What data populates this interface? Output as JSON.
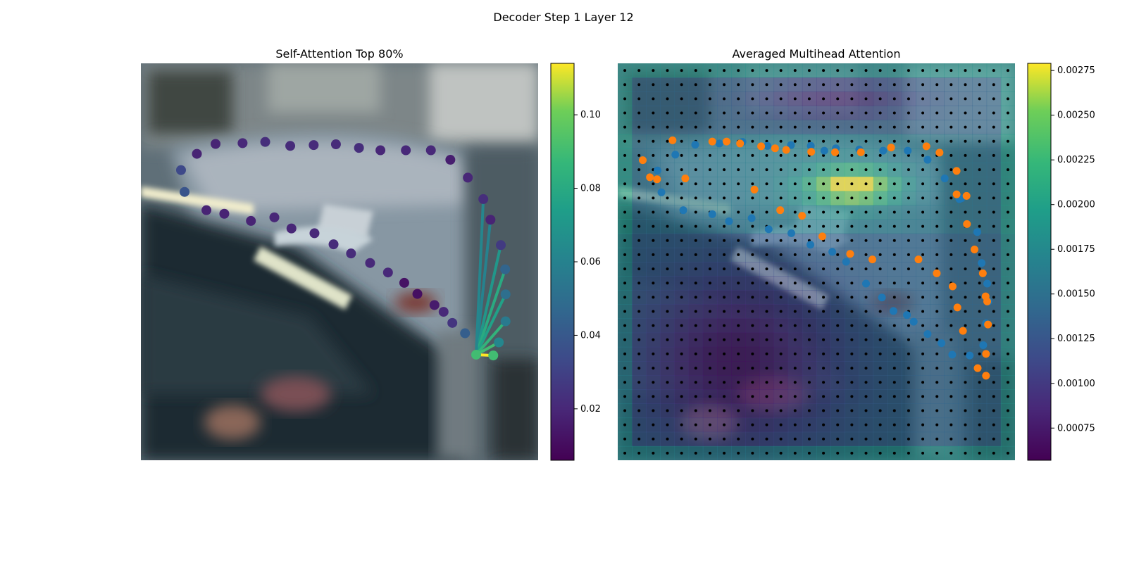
{
  "figure": {
    "suptitle": "Decoder Step 1 Layer 12"
  },
  "chart_data": [
    {
      "type": "scatter",
      "title": "Self-Attention Top 80%",
      "background": "blurred photo of parked cars (street scene)",
      "colormap": "viridis",
      "colorbar": {
        "min": 0.006,
        "max": 0.114,
        "ticks": [
          "0.02",
          "0.04",
          "0.06",
          "0.08",
          "0.10"
        ],
        "tick_values": [
          0.02,
          0.04,
          0.06,
          0.08,
          0.1
        ]
      },
      "axes_visible": false,
      "x_range": [
        0,
        1
      ],
      "y_range": [
        0,
        1
      ],
      "query_point": {
        "x": 0.844,
        "y": 0.734,
        "value": 0.09
      },
      "points": [
        {
          "x": 0.101,
          "y": 0.269,
          "value": 0.033
        },
        {
          "x": 0.11,
          "y": 0.324,
          "value": 0.038
        },
        {
          "x": 0.141,
          "y": 0.228,
          "value": 0.018
        },
        {
          "x": 0.165,
          "y": 0.37,
          "value": 0.018
        },
        {
          "x": 0.188,
          "y": 0.203,
          "value": 0.018
        },
        {
          "x": 0.21,
          "y": 0.379,
          "value": 0.018
        },
        {
          "x": 0.256,
          "y": 0.201,
          "value": 0.02
        },
        {
          "x": 0.277,
          "y": 0.397,
          "value": 0.018
        },
        {
          "x": 0.313,
          "y": 0.198,
          "value": 0.022
        },
        {
          "x": 0.336,
          "y": 0.388,
          "value": 0.019
        },
        {
          "x": 0.376,
          "y": 0.208,
          "value": 0.021
        },
        {
          "x": 0.379,
          "y": 0.416,
          "value": 0.019
        },
        {
          "x": 0.435,
          "y": 0.206,
          "value": 0.021
        },
        {
          "x": 0.437,
          "y": 0.428,
          "value": 0.02
        },
        {
          "x": 0.491,
          "y": 0.204,
          "value": 0.021
        },
        {
          "x": 0.485,
          "y": 0.456,
          "value": 0.021
        },
        {
          "x": 0.549,
          "y": 0.213,
          "value": 0.022
        },
        {
          "x": 0.529,
          "y": 0.479,
          "value": 0.021
        },
        {
          "x": 0.603,
          "y": 0.219,
          "value": 0.019
        },
        {
          "x": 0.577,
          "y": 0.503,
          "value": 0.02
        },
        {
          "x": 0.667,
          "y": 0.219,
          "value": 0.02
        },
        {
          "x": 0.622,
          "y": 0.527,
          "value": 0.02
        },
        {
          "x": 0.73,
          "y": 0.219,
          "value": 0.02
        },
        {
          "x": 0.663,
          "y": 0.553,
          "value": 0.012
        },
        {
          "x": 0.779,
          "y": 0.243,
          "value": 0.016
        },
        {
          "x": 0.696,
          "y": 0.581,
          "value": 0.011
        },
        {
          "x": 0.823,
          "y": 0.288,
          "value": 0.019
        },
        {
          "x": 0.739,
          "y": 0.609,
          "value": 0.015
        },
        {
          "x": 0.862,
          "y": 0.342,
          "value": 0.022
        },
        {
          "x": 0.762,
          "y": 0.626,
          "value": 0.02
        },
        {
          "x": 0.88,
          "y": 0.394,
          "value": 0.018
        },
        {
          "x": 0.784,
          "y": 0.654,
          "value": 0.025
        },
        {
          "x": 0.906,
          "y": 0.458,
          "value": 0.027
        },
        {
          "x": 0.816,
          "y": 0.68,
          "value": 0.042
        },
        {
          "x": 0.917,
          "y": 0.519,
          "value": 0.045
        },
        {
          "x": 0.918,
          "y": 0.582,
          "value": 0.05
        },
        {
          "x": 0.918,
          "y": 0.65,
          "value": 0.056
        },
        {
          "x": 0.901,
          "y": 0.703,
          "value": 0.062
        },
        {
          "x": 0.887,
          "y": 0.736,
          "value": 0.09
        },
        {
          "x": 0.844,
          "y": 0.734,
          "value": 0.09
        }
      ],
      "links": [
        {
          "x": 0.88,
          "y": 0.394,
          "value": 0.06
        },
        {
          "x": 0.906,
          "y": 0.458,
          "value": 0.07
        },
        {
          "x": 0.917,
          "y": 0.519,
          "value": 0.08
        },
        {
          "x": 0.918,
          "y": 0.582,
          "value": 0.075
        },
        {
          "x": 0.918,
          "y": 0.65,
          "value": 0.085
        },
        {
          "x": 0.901,
          "y": 0.703,
          "value": 0.09
        },
        {
          "x": 0.887,
          "y": 0.736,
          "value": 0.114
        },
        {
          "x": 0.862,
          "y": 0.342,
          "value": 0.062
        }
      ]
    },
    {
      "type": "heatmap",
      "title": "Averaged Multihead Attention",
      "background": "blurred photo of parked cars overlaid with attention heatmap",
      "colormap": "viridis",
      "colorbar": {
        "min": 0.00057,
        "max": 0.00279,
        "ticks": [
          "0.00075",
          "0.00100",
          "0.00125",
          "0.00150",
          "0.00175",
          "0.00200",
          "0.00225",
          "0.00250",
          "0.00275"
        ],
        "tick_values": [
          0.00075,
          0.001,
          0.00125,
          0.0015,
          0.00175,
          0.002,
          0.00225,
          0.0025,
          0.00275
        ]
      },
      "axes_visible": false,
      "grid_points": {
        "rows": 28,
        "cols": 28,
        "color": "#000000"
      },
      "hotspot": {
        "cx": 0.59,
        "cy": 0.31,
        "level": 0.0027
      },
      "point_series": [
        {
          "color": "#1f77b4",
          "points": [
            {
              "x": 0.1,
              "y": 0.27
            },
            {
              "x": 0.11,
              "y": 0.325
            },
            {
              "x": 0.145,
              "y": 0.23
            },
            {
              "x": 0.165,
              "y": 0.37
            },
            {
              "x": 0.195,
              "y": 0.205
            },
            {
              "x": 0.238,
              "y": 0.38
            },
            {
              "x": 0.256,
              "y": 0.202
            },
            {
              "x": 0.28,
              "y": 0.398
            },
            {
              "x": 0.314,
              "y": 0.198
            },
            {
              "x": 0.337,
              "y": 0.39
            },
            {
              "x": 0.377,
              "y": 0.208
            },
            {
              "x": 0.38,
              "y": 0.418
            },
            {
              "x": 0.436,
              "y": 0.206
            },
            {
              "x": 0.437,
              "y": 0.428
            },
            {
              "x": 0.486,
              "y": 0.208
            },
            {
              "x": 0.485,
              "y": 0.457
            },
            {
              "x": 0.52,
              "y": 0.22
            },
            {
              "x": 0.54,
              "y": 0.475
            },
            {
              "x": 0.575,
              "y": 0.5
            },
            {
              "x": 0.625,
              "y": 0.555
            },
            {
              "x": 0.665,
              "y": 0.59
            },
            {
              "x": 0.694,
              "y": 0.624
            },
            {
              "x": 0.728,
              "y": 0.634
            },
            {
              "x": 0.745,
              "y": 0.651
            },
            {
              "x": 0.78,
              "y": 0.682
            },
            {
              "x": 0.815,
              "y": 0.705
            },
            {
              "x": 0.842,
              "y": 0.734
            },
            {
              "x": 0.886,
              "y": 0.736
            },
            {
              "x": 0.92,
              "y": 0.71
            },
            {
              "x": 0.927,
              "y": 0.655
            },
            {
              "x": 0.933,
              "y": 0.6
            },
            {
              "x": 0.93,
              "y": 0.555
            },
            {
              "x": 0.916,
              "y": 0.503
            },
            {
              "x": 0.905,
              "y": 0.425
            },
            {
              "x": 0.865,
              "y": 0.34
            },
            {
              "x": 0.823,
              "y": 0.29
            },
            {
              "x": 0.78,
              "y": 0.243
            },
            {
              "x": 0.73,
              "y": 0.22
            },
            {
              "x": 0.668,
              "y": 0.22
            },
            {
              "x": 0.608,
              "y": 0.217
            },
            {
              "x": 0.549,
              "y": 0.214
            },
            {
              "x": 0.86,
              "y": 0.342
            }
          ]
        },
        {
          "color": "#ff7f0e",
          "points": [
            {
              "x": 0.063,
              "y": 0.244
            },
            {
              "x": 0.081,
              "y": 0.287
            },
            {
              "x": 0.099,
              "y": 0.292
            },
            {
              "x": 0.138,
              "y": 0.194
            },
            {
              "x": 0.17,
              "y": 0.29
            },
            {
              "x": 0.238,
              "y": 0.197
            },
            {
              "x": 0.274,
              "y": 0.197
            },
            {
              "x": 0.308,
              "y": 0.202
            },
            {
              "x": 0.344,
              "y": 0.318
            },
            {
              "x": 0.361,
              "y": 0.209
            },
            {
              "x": 0.396,
              "y": 0.214
            },
            {
              "x": 0.409,
              "y": 0.37
            },
            {
              "x": 0.424,
              "y": 0.218
            },
            {
              "x": 0.464,
              "y": 0.384
            },
            {
              "x": 0.487,
              "y": 0.223
            },
            {
              "x": 0.515,
              "y": 0.436
            },
            {
              "x": 0.547,
              "y": 0.224
            },
            {
              "x": 0.585,
              "y": 0.48
            },
            {
              "x": 0.612,
              "y": 0.224
            },
            {
              "x": 0.641,
              "y": 0.494
            },
            {
              "x": 0.688,
              "y": 0.212
            },
            {
              "x": 0.757,
              "y": 0.494
            },
            {
              "x": 0.777,
              "y": 0.209
            },
            {
              "x": 0.803,
              "y": 0.529
            },
            {
              "x": 0.81,
              "y": 0.225
            },
            {
              "x": 0.843,
              "y": 0.562
            },
            {
              "x": 0.853,
              "y": 0.271
            },
            {
              "x": 0.855,
              "y": 0.615
            },
            {
              "x": 0.869,
              "y": 0.674
            },
            {
              "x": 0.878,
              "y": 0.334
            },
            {
              "x": 0.879,
              "y": 0.405
            },
            {
              "x": 0.898,
              "y": 0.469
            },
            {
              "x": 0.919,
              "y": 0.529
            },
            {
              "x": 0.926,
              "y": 0.587
            },
            {
              "x": 0.93,
              "y": 0.6
            },
            {
              "x": 0.932,
              "y": 0.658
            },
            {
              "x": 0.927,
              "y": 0.732
            },
            {
              "x": 0.906,
              "y": 0.768
            },
            {
              "x": 0.927,
              "y": 0.787
            },
            {
              "x": 0.853,
              "y": 0.33
            }
          ]
        }
      ]
    }
  ]
}
